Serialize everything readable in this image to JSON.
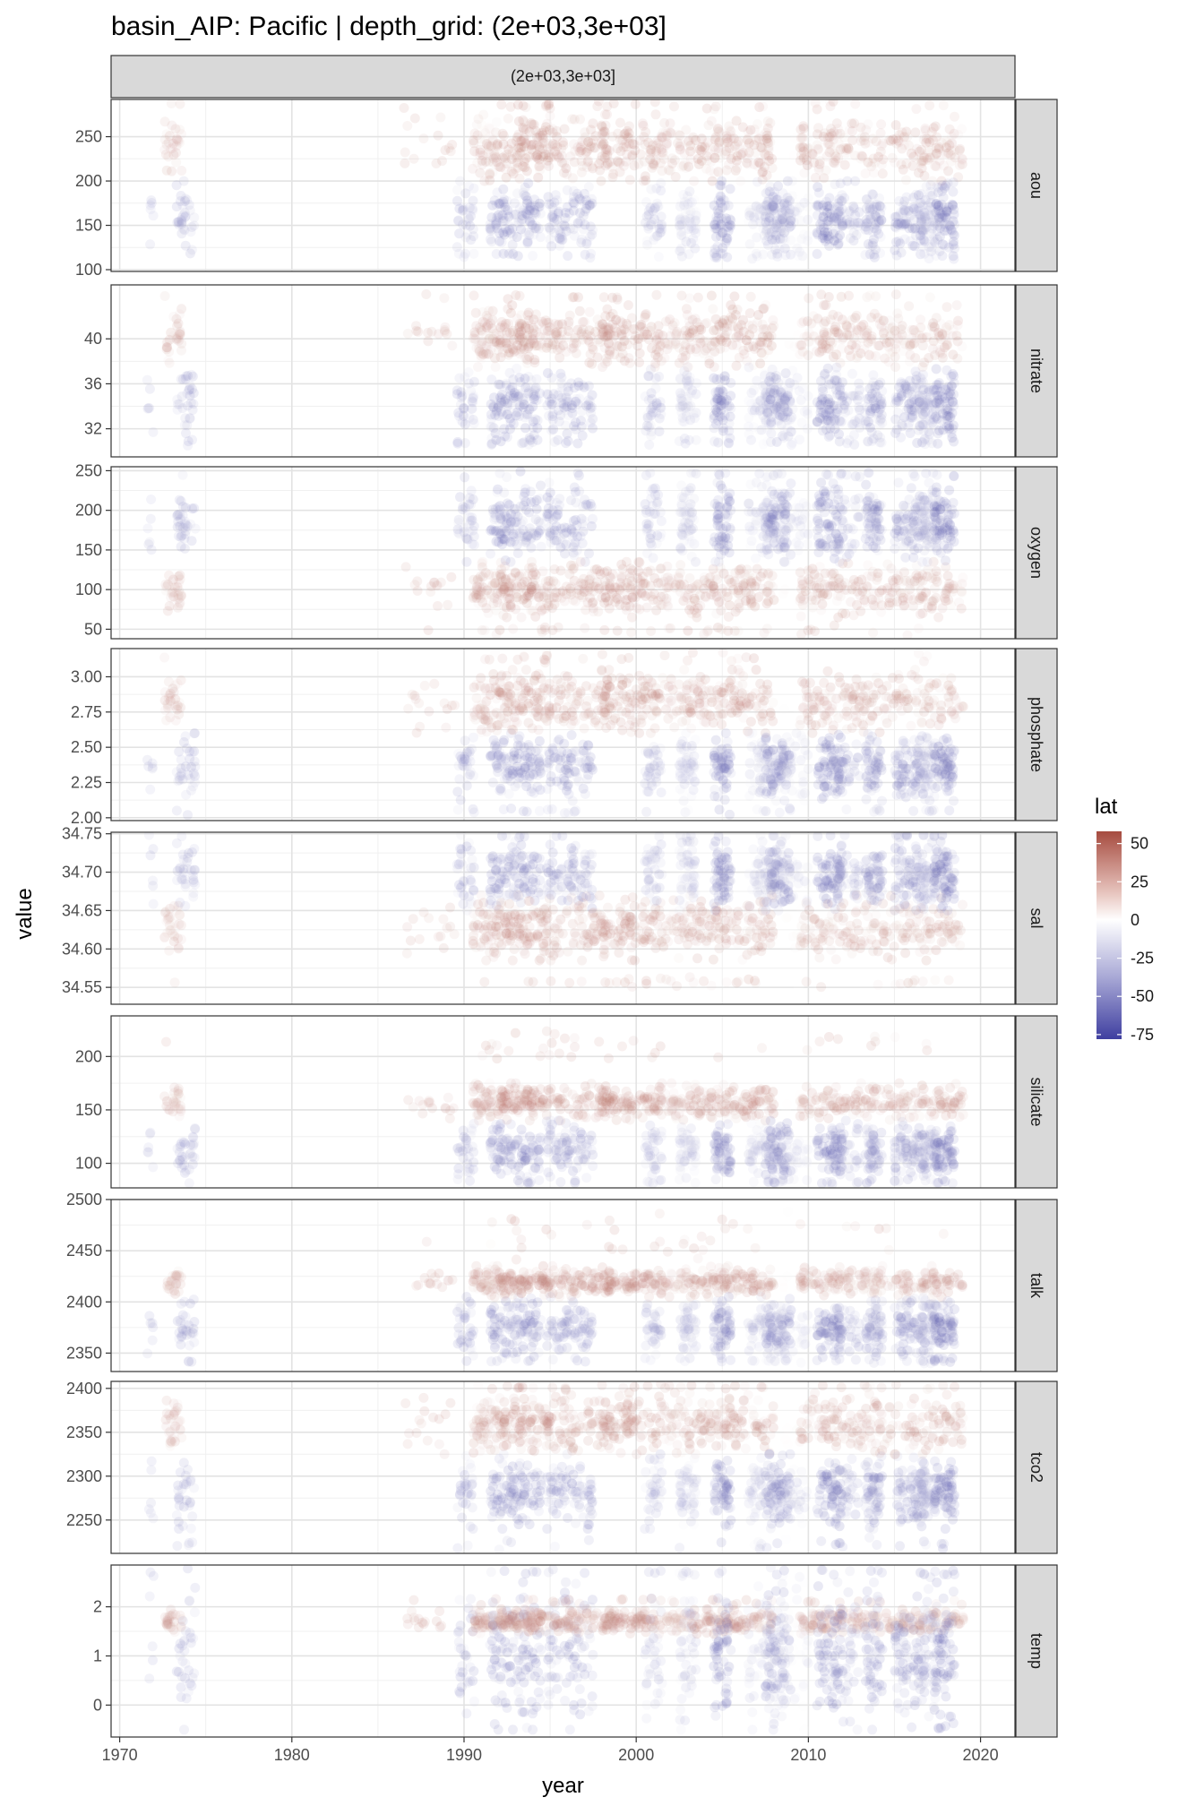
{
  "chart_data": {
    "type": "scatter",
    "title": "basin_AIP: Pacific | depth_grid: (2e+03,3e+03]",
    "column_strip": "(2e+03,3e+03]",
    "xlabel": "year",
    "ylabel": "value",
    "xlim": [
      1969.5,
      2022
    ],
    "x_ticks": [
      1970,
      1980,
      1990,
      2000,
      2010,
      2020
    ],
    "x_tick_labels": [
      "1970",
      "1980",
      "1990",
      "2000",
      "2010",
      "2020"
    ],
    "point_alpha": 0.12,
    "legend": {
      "title": "lat",
      "position": "right",
      "type": "gradient",
      "limits": [
        -78,
        58
      ],
      "ticks": [
        50,
        25,
        0,
        -25,
        -50,
        -75
      ],
      "tick_labels": [
        "50",
        "25",
        "0",
        "-25",
        "-50",
        "-75"
      ],
      "colors": {
        "low": "#3f3fa0",
        "mid": "#ffffff",
        "high": "#a64b3f"
      }
    },
    "panels": [
      {
        "name": "aou",
        "ylim": [
          98,
          292
        ],
        "ticks": [
          100,
          150,
          200,
          250
        ],
        "tick_labels": [
          "100",
          "150",
          "200",
          "250"
        ],
        "north": [
          200,
          275
        ],
        "south": [
          118,
          200
        ],
        "north_outliers": [
          280,
          290
        ],
        "south_outliers": [
          112,
          120
        ]
      },
      {
        "name": "nitrate",
        "ylim": [
          29.5,
          44.8
        ],
        "ticks": [
          32,
          36,
          40
        ],
        "tick_labels": [
          "32",
          "36",
          "40"
        ],
        "north": [
          37.5,
          43
        ],
        "south": [
          31,
          37.5
        ],
        "north_outliers": [
          43.5,
          44
        ],
        "south_outliers": [
          30.5,
          31
        ]
      },
      {
        "name": "oxygen",
        "ylim": [
          38,
          255
        ],
        "ticks": [
          50,
          100,
          150,
          200,
          250
        ],
        "tick_labels": [
          "50",
          "100",
          "150",
          "200",
          "250"
        ],
        "north": [
          65,
          135
        ],
        "south": [
          135,
          235
        ],
        "north_outliers": [
          42,
          55
        ],
        "south_outliers": [
          240,
          250
        ]
      },
      {
        "name": "phosphate",
        "ylim": [
          1.98,
          3.2
        ],
        "ticks": [
          2.0,
          2.25,
          2.5,
          2.75,
          3.0
        ],
        "tick_labels": [
          "2.00",
          "2.25",
          "2.50",
          "2.75",
          "3.00"
        ],
        "north": [
          2.6,
          3.05
        ],
        "south": [
          2.12,
          2.6
        ],
        "north_outliers": [
          3.1,
          3.18
        ],
        "south_outliers": [
          2.02,
          2.08
        ]
      },
      {
        "name": "sal",
        "ylim": [
          34.528,
          34.752
        ],
        "ticks": [
          34.55,
          34.6,
          34.65,
          34.7,
          34.75
        ],
        "tick_labels": [
          "34.55",
          "34.60",
          "34.65",
          "34.70",
          "34.75"
        ],
        "north": [
          34.585,
          34.67
        ],
        "south": [
          34.65,
          34.74
        ],
        "north_outliers": [
          34.55,
          34.565
        ],
        "south_outliers": [
          34.745,
          34.75
        ]
      },
      {
        "name": "silicate",
        "ylim": [
          77,
          238
        ],
        "ticks": [
          100,
          150,
          200
        ],
        "tick_labels": [
          "100",
          "150",
          "200"
        ],
        "north": [
          140,
          175
        ],
        "south": [
          85,
          140
        ],
        "north_outliers": [
          195,
          225
        ],
        "south_outliers": [
          80,
          85
        ]
      },
      {
        "name": "talk",
        "ylim": [
          2332,
          2500
        ],
        "ticks": [
          2350,
          2400,
          2450,
          2500
        ],
        "tick_labels": [
          "2350",
          "2400",
          "2450",
          "2500"
        ],
        "north": [
          2405,
          2435
        ],
        "south": [
          2345,
          2405
        ],
        "north_outliers": [
          2440,
          2490
        ],
        "south_outliers": [
          2340,
          2345
        ]
      },
      {
        "name": "tco2",
        "ylim": [
          2212,
          2408
        ],
        "ticks": [
          2250,
          2300,
          2350,
          2400
        ],
        "tick_labels": [
          "2250",
          "2300",
          "2350",
          "2400"
        ],
        "north": [
          2325,
          2395
        ],
        "south": [
          2240,
          2325
        ],
        "north_outliers": [
          2398,
          2405
        ],
        "south_outliers": [
          2215,
          2230
        ]
      },
      {
        "name": "temp",
        "ylim": [
          -0.65,
          2.85
        ],
        "ticks": [
          0,
          1,
          2
        ],
        "tick_labels": [
          "0",
          "1",
          "2"
        ],
        "north": [
          1.45,
          1.95
        ],
        "south": [
          -0.5,
          2.5
        ],
        "north_outliers": [
          2.0,
          2.2
        ],
        "south_outliers": [
          2.6,
          2.8
        ]
      }
    ],
    "sampling_periods": [
      {
        "x": [
          1971.6,
          1972.0
        ],
        "lat": [
          -50,
          -30
        ],
        "weight": 10
      },
      {
        "x": [
          1972.6,
          1973.6
        ],
        "lat": [
          10,
          45
        ],
        "weight": 50
      },
      {
        "x": [
          1973.3,
          1974.4
        ],
        "lat": [
          -60,
          -25
        ],
        "weight": 55
      },
      {
        "x": [
          1986.5,
          1989.5
        ],
        "lat": [
          25,
          45
        ],
        "weight": 25
      },
      {
        "x": [
          1989.6,
          1990.6
        ],
        "lat": [
          -65,
          -15
        ],
        "weight": 55
      },
      {
        "x": [
          1990.5,
          1992.0
        ],
        "lat": [
          5,
          50
        ],
        "weight": 100
      },
      {
        "x": [
          1991.5,
          1994.5
        ],
        "lat": [
          -75,
          -20
        ],
        "weight": 200
      },
      {
        "x": [
          1992.0,
          1995.0
        ],
        "lat": [
          15,
          55
        ],
        "weight": 200
      },
      {
        "x": [
          1994.8,
          1997.5
        ],
        "lat": [
          -70,
          -20
        ],
        "weight": 140
      },
      {
        "x": [
          1995.0,
          1998.5
        ],
        "lat": [
          20,
          50
        ],
        "weight": 130
      },
      {
        "x": [
          1998.0,
          2001.5
        ],
        "lat": [
          25,
          50
        ],
        "weight": 160
      },
      {
        "x": [
          2000.5,
          2001.5
        ],
        "lat": [
          -55,
          -15
        ],
        "weight": 60
      },
      {
        "x": [
          2001.5,
          2003.0
        ],
        "lat": [
          10,
          40
        ],
        "weight": 60
      },
      {
        "x": [
          2002.5,
          2003.5
        ],
        "lat": [
          -45,
          -5
        ],
        "weight": 90
      },
      {
        "x": [
          2003.0,
          2008.0
        ],
        "lat": [
          10,
          55
        ],
        "weight": 230
      },
      {
        "x": [
          2004.5,
          2005.5
        ],
        "lat": [
          -75,
          -30
        ],
        "weight": 100
      },
      {
        "x": [
          2006.5,
          2008.5
        ],
        "lat": [
          -40,
          -5
        ],
        "weight": 120
      },
      {
        "x": [
          2007.5,
          2009.0
        ],
        "lat": [
          -70,
          -25
        ],
        "weight": 130
      },
      {
        "x": [
          2008.5,
          2010.0
        ],
        "lat": [
          -30,
          5
        ],
        "weight": 70
      },
      {
        "x": [
          2009.5,
          2019.0
        ],
        "lat": [
          10,
          50
        ],
        "weight": 360
      },
      {
        "x": [
          2010.5,
          2012.0
        ],
        "lat": [
          -75,
          -40
        ],
        "weight": 110
      },
      {
        "x": [
          2011.5,
          2013.0
        ],
        "lat": [
          -55,
          -25
        ],
        "weight": 60
      },
      {
        "x": [
          2013.3,
          2014.3
        ],
        "lat": [
          -70,
          -20
        ],
        "weight": 100
      },
      {
        "x": [
          2015.0,
          2016.8
        ],
        "lat": [
          -70,
          -25
        ],
        "weight": 130
      },
      {
        "x": [
          2016.5,
          2017.5
        ],
        "lat": [
          -45,
          -20
        ],
        "weight": 90
      },
      {
        "x": [
          2017.3,
          2018.5
        ],
        "lat": [
          -75,
          -40
        ],
        "weight": 110
      }
    ]
  }
}
